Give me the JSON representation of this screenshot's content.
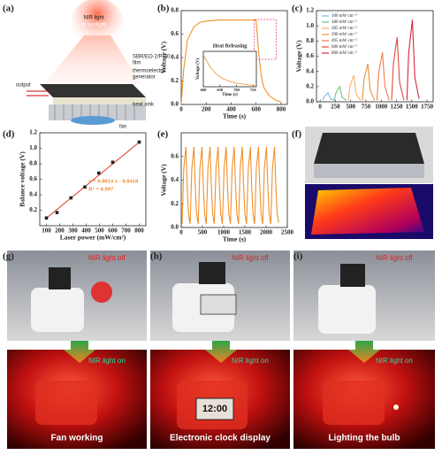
{
  "panel_labels": [
    "(a)",
    "(b)",
    "(c)",
    "(d)",
    "(e)",
    "(f)",
    "(g)",
    "(h)",
    "(i)"
  ],
  "diagram": {
    "light": [
      "NIR light",
      "or sunlight"
    ],
    "output": "output",
    "film": [
      "SBR/EO-2/P-70",
      "film"
    ],
    "generator": [
      "thermoelectric",
      "generator"
    ],
    "heat_sink": "heat sink",
    "fan": "fan"
  },
  "chart_data": [
    {
      "type": "line",
      "xlabel": "Time (s)",
      "ylabel": "Voltage (V)",
      "xlim": [
        0,
        850
      ],
      "xticks": [
        0,
        200,
        400,
        600,
        800
      ],
      "ylim": [
        0,
        0.8
      ],
      "yticks": [
        {
          "value": 0,
          "label": "0.0"
        },
        0.2,
        0.4,
        0.6,
        0.8
      ],
      "series": [
        {
          "color": "#f0902a",
          "x": [
            0,
            20,
            50,
            100,
            150,
            200,
            300,
            400,
            500,
            600,
            620,
            640,
            660,
            700,
            750,
            800
          ],
          "values": [
            0,
            0.3,
            0.55,
            0.66,
            0.7,
            0.71,
            0.72,
            0.72,
            0.72,
            0.72,
            0.45,
            0.25,
            0.15,
            0.08,
            0.04,
            0.02
          ]
        }
      ],
      "inset": {
        "type": "line",
        "annotation": "Heat Releasing",
        "xlabel": "Time (s)",
        "ylabel": "Voltage (V)",
        "xlim": [
          600,
          760
        ],
        "xticks": [
          600,
          650,
          700,
          750
        ],
        "ylim": [
          0,
          0.8
        ],
        "series": [
          {
            "color": "#f0902a",
            "x": [
              600,
              620,
              640,
              660,
              680,
              700,
              720,
              740,
              760
            ],
            "values": [
              0.72,
              0.45,
              0.28,
              0.18,
              0.12,
              0.08,
              0.06,
              0.04,
              0.03
            ]
          }
        ]
      }
    },
    {
      "type": "line",
      "ylabel": "Voltage (V)",
      "legend": "upper left",
      "xlim": [
        -60,
        1850
      ],
      "xticks": [
        0,
        250,
        500,
        750,
        1000,
        1250,
        1500,
        1750
      ],
      "ylim": [
        0,
        1.2
      ],
      "yticks": [
        {
          "value": 0,
          "label": "0.0"
        },
        0.2,
        0.4,
        0.6,
        0.8,
        {
          "value": 1,
          "label": "1.0"
        },
        1.2
      ],
      "series": [
        {
          "name": "100 mW cm⁻²",
          "color": "#7fb8e8",
          "x": [
            40,
            70,
            130,
            170,
            240
          ],
          "values": [
            0.02,
            0.07,
            0.12,
            0.04,
            0.02
          ]
        },
        {
          "name": "180 mW cm⁻²",
          "color": "#6fc28a",
          "x": [
            230,
            260,
            320,
            360,
            430
          ],
          "values": [
            0.02,
            0.12,
            0.2,
            0.06,
            0.02
          ]
        },
        {
          "name": "285 mW cm⁻²",
          "color": "#f6b26b",
          "x": [
            460,
            490,
            550,
            590,
            660
          ],
          "values": [
            0.02,
            0.21,
            0.35,
            0.1,
            0.02
          ]
        },
        {
          "name": "390 mW cm⁻²",
          "color": "#e69138",
          "x": [
            690,
            720,
            780,
            820,
            890
          ],
          "values": [
            0.02,
            0.3,
            0.5,
            0.15,
            0.02
          ]
        },
        {
          "name": "495 mW cm⁻²",
          "color": "#f07c4b",
          "x": [
            930,
            960,
            1020,
            1060,
            1130
          ],
          "values": [
            0.02,
            0.39,
            0.65,
            0.2,
            0.02
          ]
        },
        {
          "name": "600 mW cm⁻²",
          "color": "#e04b3c",
          "x": [
            1170,
            1200,
            1260,
            1300,
            1370
          ],
          "values": [
            0.02,
            0.51,
            0.85,
            0.26,
            0.02
          ]
        },
        {
          "name": "800 mW cm⁻²",
          "color": "#d7263d",
          "x": [
            1420,
            1450,
            1510,
            1550,
            1620
          ],
          "values": [
            0.02,
            0.65,
            1.08,
            0.32,
            0.04
          ]
        }
      ]
    },
    {
      "type": "scatter",
      "xlabel": "Laser power (mW/cm²)",
      "ylabel": "Balance voltage (V)",
      "xlim": [
        50,
        850
      ],
      "xticks": [
        100,
        200,
        300,
        400,
        500,
        600,
        700,
        800
      ],
      "ylim": [
        0,
        1.2
      ],
      "yticks": [
        0.2,
        0.4,
        0.6,
        0.8,
        {
          "value": 1,
          "label": "1.0"
        },
        1.2
      ],
      "annotations": [
        "y = 0.0014 x - 0.0418",
        "R² = 0.997"
      ],
      "annotation_color": "#e8892b",
      "fit_line": {
        "color": "#e03020",
        "x": [
          100,
          800
        ],
        "values": [
          0.098,
          1.078
        ]
      },
      "series": [
        {
          "color": "#222222",
          "x": [
            100,
            180,
            285,
            390,
            495,
            600,
            800
          ],
          "values": [
            0.1,
            0.17,
            0.36,
            0.5,
            0.68,
            0.82,
            1.08
          ]
        }
      ]
    },
    {
      "type": "line",
      "xlabel": "Time (s)",
      "ylabel": "Voltage (V)",
      "xlim": [
        0,
        2500
      ],
      "xticks": [
        0,
        500,
        1000,
        1500,
        2000,
        2500
      ],
      "ylim": [
        0,
        0.8
      ],
      "yticks": [
        {
          "value": 0,
          "label": "0.0"
        },
        0.2,
        0.4,
        0.6
      ],
      "series": [
        {
          "color": "#f0902a",
          "x": [
            20,
            60,
            110,
            135,
            170,
            205,
            210,
            250,
            300,
            325,
            360,
            395,
            400,
            440,
            490,
            515,
            550,
            585,
            590,
            630,
            680,
            705,
            740,
            775,
            780,
            820,
            870,
            895,
            930,
            965,
            970,
            1010,
            1060,
            1085,
            1120,
            1155,
            1160,
            1200,
            1250,
            1275,
            1310,
            1345,
            1350,
            1390,
            1440,
            1465,
            1500,
            1535,
            1540,
            1580,
            1630,
            1655,
            1690,
            1725,
            1730,
            1770,
            1820,
            1845,
            1880,
            1915,
            1920,
            1960,
            2010,
            2035,
            2070,
            2105,
            2110,
            2150,
            2200,
            2225,
            2260,
            2295
          ],
          "values": [
            0.03,
            0.5,
            0.68,
            0.4,
            0.12,
            0.04,
            0.03,
            0.5,
            0.68,
            0.4,
            0.12,
            0.04,
            0.03,
            0.5,
            0.68,
            0.4,
            0.12,
            0.04,
            0.03,
            0.5,
            0.68,
            0.4,
            0.12,
            0.04,
            0.03,
            0.5,
            0.68,
            0.4,
            0.12,
            0.04,
            0.03,
            0.5,
            0.68,
            0.4,
            0.12,
            0.04,
            0.03,
            0.5,
            0.68,
            0.4,
            0.12,
            0.04,
            0.03,
            0.5,
            0.68,
            0.4,
            0.12,
            0.04,
            0.03,
            0.5,
            0.68,
            0.4,
            0.12,
            0.04,
            0.03,
            0.5,
            0.68,
            0.4,
            0.12,
            0.04,
            0.03,
            0.5,
            0.68,
            0.4,
            0.12,
            0.04,
            0.03,
            0.5,
            0.68,
            0.4,
            0.12,
            0.04
          ]
        }
      ]
    }
  ],
  "photos": {
    "off_label": "NIR light off",
    "on_label": "NIR light on",
    "clock": "12:00",
    "captions": [
      "Fan working",
      "Electronic clock display",
      "Lighting the bulb"
    ]
  }
}
